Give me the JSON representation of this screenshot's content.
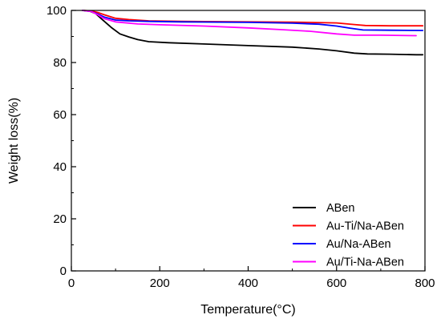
{
  "chart_data": {
    "type": "line",
    "title": "",
    "xlabel": "Temperature(°C)",
    "ylabel": "Weight loss(%)",
    "xlim": [
      0,
      800
    ],
    "ylim": [
      0,
      100
    ],
    "x_ticks": [
      0,
      200,
      400,
      600,
      800
    ],
    "y_ticks": [
      0,
      20,
      40,
      60,
      80,
      100
    ],
    "x_tick_labels": [
      "0",
      "200",
      "400",
      "600",
      "800"
    ],
    "y_tick_labels": [
      "0",
      "20",
      "40",
      "60",
      "80",
      "100"
    ],
    "grid": false,
    "legend": "bottom-right",
    "series": [
      {
        "name": "ABen",
        "color": "#000000",
        "points": [
          [
            25,
            100
          ],
          [
            40,
            99.8
          ],
          [
            55,
            98.8
          ],
          [
            70,
            96.5
          ],
          [
            90,
            93.5
          ],
          [
            110,
            91
          ],
          [
            130,
            89.8
          ],
          [
            150,
            88.8
          ],
          [
            175,
            88
          ],
          [
            220,
            87.6
          ],
          [
            300,
            87.1
          ],
          [
            400,
            86.5
          ],
          [
            500,
            85.9
          ],
          [
            560,
            85.2
          ],
          [
            600,
            84.5
          ],
          [
            640,
            83.6
          ],
          [
            670,
            83.3
          ],
          [
            720,
            83.2
          ],
          [
            780,
            83
          ],
          [
            795,
            83
          ]
        ]
      },
      {
        "name": "Au-Ti/Na-ABen",
        "color": "#ff0000",
        "points": [
          [
            25,
            100
          ],
          [
            45,
            99.8
          ],
          [
            60,
            99.2
          ],
          [
            75,
            98.3
          ],
          [
            100,
            97
          ],
          [
            130,
            96.5
          ],
          [
            175,
            96
          ],
          [
            250,
            95.8
          ],
          [
            400,
            95.6
          ],
          [
            500,
            95.5
          ],
          [
            600,
            95.2
          ],
          [
            640,
            94.6
          ],
          [
            665,
            94.2
          ],
          [
            720,
            94.1
          ],
          [
            795,
            94.1
          ]
        ]
      },
      {
        "name": "Au/Na-ABen",
        "color": "#0000ff",
        "points": [
          [
            25,
            100
          ],
          [
            45,
            99.6
          ],
          [
            60,
            98.6
          ],
          [
            75,
            97.4
          ],
          [
            100,
            96.3
          ],
          [
            130,
            96
          ],
          [
            175,
            95.8
          ],
          [
            250,
            95.6
          ],
          [
            400,
            95.4
          ],
          [
            500,
            95.1
          ],
          [
            560,
            94.7
          ],
          [
            600,
            94
          ],
          [
            630,
            93.2
          ],
          [
            660,
            92.5
          ],
          [
            720,
            92.4
          ],
          [
            795,
            92.3
          ]
        ]
      },
      {
        "name": "Au/Ti-Na-ABen",
        "color": "#ff00ff",
        "points": [
          [
            25,
            100
          ],
          [
            45,
            99.6
          ],
          [
            60,
            98.3
          ],
          [
            75,
            96.8
          ],
          [
            100,
            95.6
          ],
          [
            150,
            94.8
          ],
          [
            200,
            94.5
          ],
          [
            300,
            94
          ],
          [
            400,
            93.3
          ],
          [
            480,
            92.6
          ],
          [
            540,
            92
          ],
          [
            600,
            91
          ],
          [
            640,
            90.5
          ],
          [
            700,
            90.5
          ],
          [
            780,
            90.3
          ]
        ]
      }
    ]
  }
}
